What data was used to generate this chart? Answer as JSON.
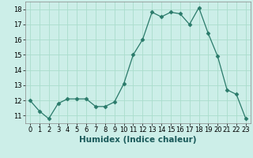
{
  "x": [
    0,
    1,
    2,
    3,
    4,
    5,
    6,
    7,
    8,
    9,
    10,
    11,
    12,
    13,
    14,
    15,
    16,
    17,
    18,
    19,
    20,
    21,
    22,
    23
  ],
  "y": [
    12.0,
    11.3,
    10.8,
    11.8,
    12.1,
    12.1,
    12.1,
    11.6,
    11.6,
    11.9,
    13.1,
    15.0,
    16.0,
    17.8,
    17.5,
    17.8,
    17.7,
    17.0,
    18.1,
    16.4,
    14.9,
    12.7,
    12.4,
    10.8
  ],
  "line_color": "#2a7a6a",
  "marker": "D",
  "marker_size": 2.5,
  "bg_color": "#cceee8",
  "grid_color": "#aaddcc",
  "xlabel": "Humidex (Indice chaleur)",
  "xlim": [
    -0.5,
    23.5
  ],
  "ylim": [
    10.5,
    18.5
  ],
  "yticks": [
    11,
    12,
    13,
    14,
    15,
    16,
    17,
    18
  ],
  "xticks": [
    0,
    1,
    2,
    3,
    4,
    5,
    6,
    7,
    8,
    9,
    10,
    11,
    12,
    13,
    14,
    15,
    16,
    17,
    18,
    19,
    20,
    21,
    22,
    23
  ],
  "tick_fontsize": 6,
  "xlabel_fontsize": 7.5,
  "xlabel_fontweight": "bold"
}
